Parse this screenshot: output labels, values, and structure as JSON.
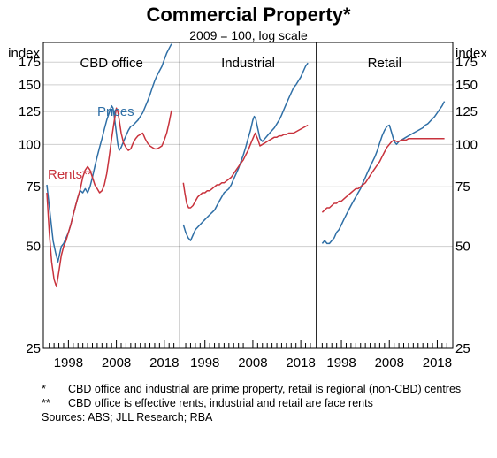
{
  "chart_data": {
    "type": "line",
    "title": "Commercial Property*",
    "subtitle": "2009 = 100, log scale",
    "ylabel_left": "index",
    "ylabel_right": "index",
    "y_scale": "log",
    "ylim": [
      25,
      200
    ],
    "yticks": [
      25,
      50,
      75,
      100,
      125,
      150,
      175
    ],
    "xticks": [
      "1998",
      "2008",
      "2018"
    ],
    "xlim": [
      1993.5,
      2020.5
    ],
    "grid": true,
    "panels": [
      {
        "title": "CBD office",
        "series": [
          {
            "name": "Prices",
            "color": "#2f6fa6",
            "x": [
              1993.5,
              1994.2,
              1994.8,
              1995.3,
              1995.8,
              1996.5,
              1997,
              1997.5,
              1998,
              1998.5,
              1999,
              1999.5,
              2000,
              2000.5,
              2001,
              2001.5,
              2002,
              2002.5,
              2003,
              2003.5,
              2004,
              2004.5,
              2005,
              2005.5,
              2006,
              2006.5,
              2007,
              2007.3,
              2007.6,
              2008,
              2008.3,
              2008.6,
              2009,
              2009.5,
              2010,
              2010.5,
              2011,
              2011.5,
              2012,
              2012.5,
              2013,
              2013.5,
              2014,
              2014.5,
              2015,
              2015.5,
              2016,
              2016.5,
              2017,
              2017.5,
              2018,
              2018.5,
              2019,
              2019.5
            ],
            "y": [
              76,
              62,
              52,
              48,
              45,
              50,
              51,
              53,
              55,
              58,
              62,
              66,
              70,
              73,
              72,
              74,
              72,
              75,
              80,
              86,
              92,
              98,
              104,
              111,
              118,
              124,
              130,
              128,
              120,
              108,
              100,
              96,
              98,
              102,
              106,
              110,
              113,
              114,
              116,
              118,
              121,
              124,
              129,
              134,
              140,
              147,
              154,
              160,
              165,
              170,
              178,
              186,
              192,
              198
            ]
          },
          {
            "name": "Rents**",
            "color": "#c8323c",
            "x": [
              1993.5,
              1994,
              1994.5,
              1995,
              1995.5,
              1996,
              1996.5,
              1997,
              1997.5,
              1998,
              1998.5,
              1999,
              1999.5,
              2000,
              2000.5,
              2001,
              2001.5,
              2002,
              2002.5,
              2003,
              2003.5,
              2004,
              2004.5,
              2005,
              2005.5,
              2006,
              2006.5,
              2007,
              2007.5,
              2008,
              2008.3,
              2008.6,
              2009,
              2009.5,
              2010,
              2010.5,
              2011,
              2011.5,
              2012,
              2012.5,
              2013,
              2013.5,
              2014,
              2014.5,
              2015,
              2015.5,
              2016,
              2016.5,
              2017,
              2017.5,
              2018,
              2018.5,
              2019,
              2019.5
            ],
            "y": [
              72,
              55,
              45,
              40,
              38,
              42,
              47,
              50,
              52,
              55,
              58,
              62,
              66,
              70,
              74,
              80,
              84,
              86,
              84,
              80,
              76,
              74,
              72,
              73,
              76,
              82,
              92,
              104,
              116,
              128,
              125,
              118,
              108,
              101,
              98,
              96,
              97,
              101,
              104,
              106,
              107,
              108,
              104,
              101,
              99,
              98,
              97,
              97,
              98,
              99,
              103,
              108,
              116,
              126
            ]
          }
        ]
      },
      {
        "title": "Industrial",
        "series": [
          {
            "name": "",
            "color": "#2f6fa6",
            "x": [
              1993.5,
              1994,
              1994.5,
              1995,
              1995.5,
              1996,
              1996.5,
              1997,
              1997.5,
              1998,
              1998.5,
              1999,
              1999.5,
              2000,
              2000.5,
              2001,
              2001.5,
              2002,
              2002.5,
              2003,
              2003.5,
              2004,
              2004.5,
              2005,
              2005.5,
              2006,
              2006.5,
              2007,
              2007.5,
              2008,
              2008.3,
              2008.6,
              2009,
              2009.5,
              2010,
              2010.5,
              2011,
              2011.5,
              2012,
              2012.5,
              2013,
              2013.5,
              2014,
              2014.5,
              2015,
              2015.5,
              2016,
              2016.5,
              2017,
              2017.5,
              2018,
              2018.5,
              2019,
              2019.5
            ],
            "y": [
              58,
              55,
              53,
              52,
              54,
              56,
              57,
              58,
              59,
              60,
              61,
              62,
              63,
              64,
              66,
              68,
              70,
              72,
              73,
              74,
              76,
              79,
              82,
              85,
              89,
              93,
              98,
              104,
              110,
              118,
              121,
              119,
              112,
              104,
              102,
              104,
              106,
              108,
              110,
              112,
              115,
              118,
              122,
              127,
              132,
              137,
              142,
              147,
              150,
              154,
              158,
              164,
              170,
              174
            ]
          },
          {
            "name": "",
            "color": "#c8323c",
            "x": [
              1993.5,
              1993.8,
              1994.2,
              1994.6,
              1995,
              1995.5,
              1996,
              1996.5,
              1997,
              1997.5,
              1998,
              1998.5,
              1999,
              1999.5,
              2000,
              2000.5,
              2001,
              2001.5,
              2002,
              2002.5,
              2003,
              2003.5,
              2004,
              2004.5,
              2005,
              2005.5,
              2006,
              2006.5,
              2007,
              2007.5,
              2008,
              2008.5,
              2009,
              2009.5,
              2010,
              2010.5,
              2011,
              2011.5,
              2012,
              2012.5,
              2013,
              2013.5,
              2014,
              2014.5,
              2015,
              2015.5,
              2016,
              2016.5,
              2017,
              2017.5,
              2018,
              2018.5,
              2019,
              2019.5
            ],
            "y": [
              77,
              72,
              67,
              65,
              65,
              66,
              68,
              70,
              71,
              72,
              72,
              73,
              73,
              74,
              75,
              76,
              76,
              77,
              77,
              78,
              79,
              80,
              82,
              84,
              86,
              88,
              90,
              93,
              96,
              100,
              104,
              108,
              104,
              99,
              100,
              101,
              102,
              103,
              104,
              105,
              105,
              106,
              106,
              107,
              107,
              108,
              108,
              108,
              109,
              110,
              111,
              112,
              113,
              114
            ]
          }
        ]
      },
      {
        "title": "Retail",
        "series": [
          {
            "name": "",
            "color": "#2f6fa6",
            "x": [
              1994,
              1994.5,
              1995,
              1995.5,
              1996,
              1996.5,
              1997,
              1997.5,
              1998,
              1998.5,
              1999,
              1999.5,
              2000,
              2000.5,
              2001,
              2001.5,
              2002,
              2002.5,
              2003,
              2003.5,
              2004,
              2004.5,
              2005,
              2005.5,
              2006,
              2006.5,
              2007,
              2007.5,
              2008,
              2008.5,
              2009,
              2009.5,
              2010,
              2010.5,
              2011,
              2011.5,
              2012,
              2012.5,
              2013,
              2013.5,
              2014,
              2014.5,
              2015,
              2015.5,
              2016,
              2016.5,
              2017,
              2017.5,
              2018,
              2018.5,
              2019,
              2019.5
            ],
            "y": [
              51,
              52,
              51,
              51,
              52,
              53,
              55,
              56,
              58,
              60,
              62,
              64,
              66,
              68,
              70,
              72,
              74,
              77,
              80,
              83,
              86,
              89,
              92,
              96,
              101,
              106,
              110,
              113,
              114,
              108,
              102,
              100,
              102,
              103,
              104,
              105,
              106,
              107,
              108,
              109,
              110,
              111,
              112,
              114,
              115,
              117,
              119,
              121,
              124,
              127,
              130,
              134
            ]
          },
          {
            "name": "",
            "color": "#c8323c",
            "x": [
              1994,
              1994.5,
              1995,
              1995.5,
              1996,
              1996.5,
              1997,
              1997.5,
              1998,
              1998.5,
              1999,
              1999.5,
              2000,
              2000.5,
              2001,
              2001.5,
              2002,
              2002.5,
              2003,
              2003.5,
              2004,
              2004.5,
              2005,
              2005.5,
              2006,
              2006.5,
              2007,
              2007.5,
              2008,
              2008.5,
              2009,
              2009.5,
              2010,
              2010.5,
              2011,
              2011.5,
              2012,
              2012.5,
              2013,
              2013.5,
              2014,
              2014.5,
              2015,
              2015.5,
              2016,
              2016.5,
              2017,
              2017.5,
              2018,
              2018.5,
              2019,
              2019.5
            ],
            "y": [
              63,
              64,
              65,
              65,
              66,
              67,
              67,
              68,
              68,
              69,
              70,
              71,
              72,
              73,
              74,
              74,
              75,
              76,
              77,
              79,
              81,
              83,
              85,
              87,
              89,
              92,
              95,
              98,
              100,
              102,
              103,
              102,
              102,
              103,
              103,
              103,
              104,
              104,
              104,
              104,
              104,
              104,
              104,
              104,
              104,
              104,
              104,
              104,
              104,
              104,
              104,
              104
            ]
          }
        ]
      }
    ]
  },
  "footnotes": [
    {
      "mark": "*",
      "text": "CBD office and industrial are prime property, retail is regional (non-CBD) centres"
    },
    {
      "mark": "**",
      "text": "CBD office is effective rents, industrial and retail are face rents"
    }
  ],
  "sources": "Sources: ABS; JLL Research; RBA"
}
